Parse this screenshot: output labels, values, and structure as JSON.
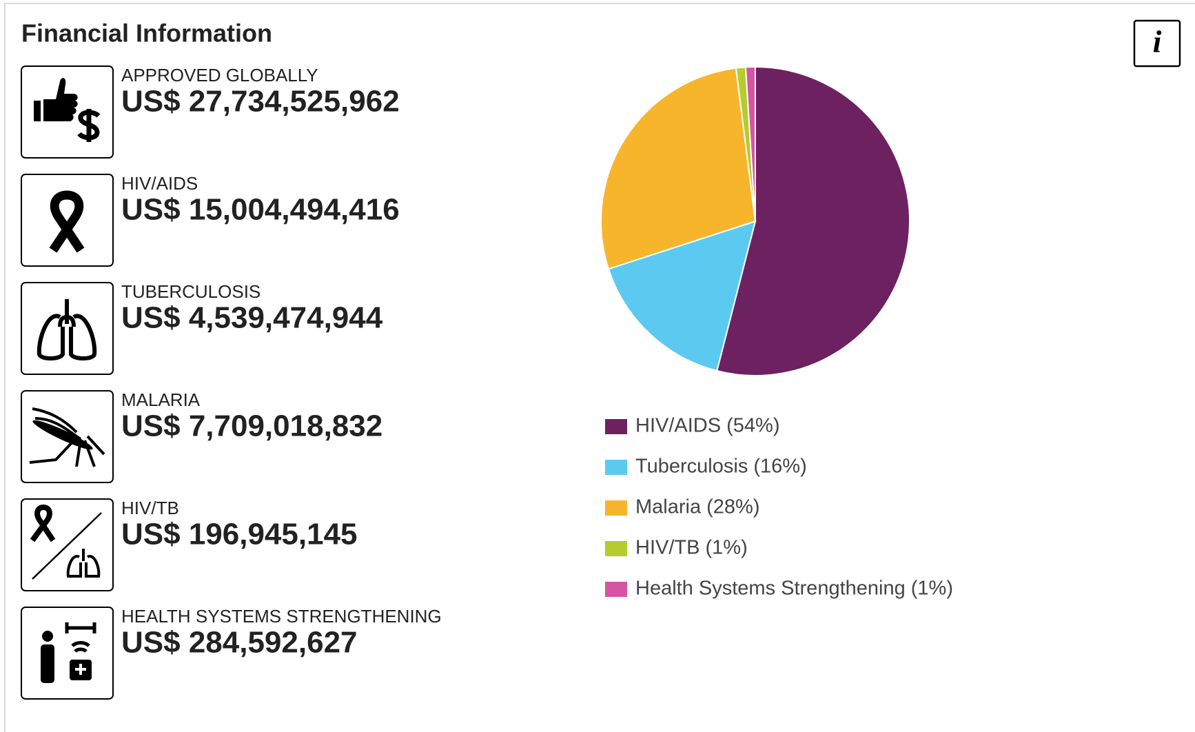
{
  "title": "Financial Information",
  "info_button": "i",
  "items": [
    {
      "label": "APPROVED GLOBALLY",
      "amount": "US$ 27,734,525,962"
    },
    {
      "label": "HIV/AIDS",
      "amount": "US$ 15,004,494,416"
    },
    {
      "label": "TUBERCULOSIS",
      "amount": "US$ 4,539,474,944"
    },
    {
      "label": "MALARIA",
      "amount": "US$ 7,709,018,832"
    },
    {
      "label": "HIV/TB",
      "amount": "US$ 196,945,145"
    },
    {
      "label": "HEALTH SYSTEMS STRENGTHENING",
      "amount": "US$ 284,592,627"
    }
  ],
  "chart_data": {
    "type": "pie",
    "categories": [
      "HIV/AIDS (54%)",
      "Tuberculosis (16%)",
      "Malaria (28%)",
      "HIV/TB (1%)",
      "Health Systems Strengthening (1%)"
    ],
    "values": [
      54,
      16,
      28,
      1,
      1
    ],
    "colors": [
      "#6d2160",
      "#5ccaf0",
      "#f7b52c",
      "#b5cc2e",
      "#d455a4"
    ],
    "legend": "bottom"
  }
}
